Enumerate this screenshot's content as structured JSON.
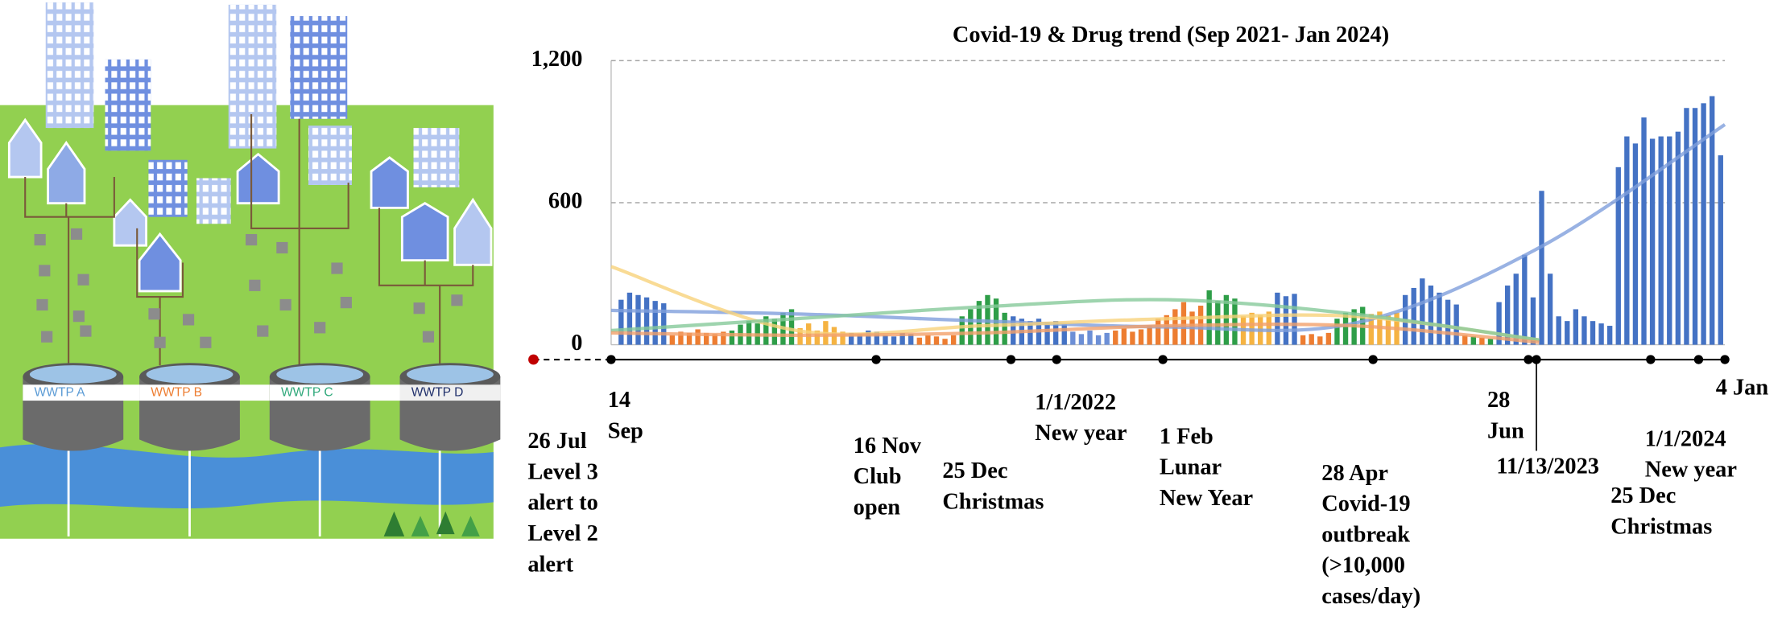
{
  "illustration": {
    "plants": [
      {
        "label": "WWTP A",
        "color": "#5b9bd5"
      },
      {
        "label": "WWTP B",
        "color": "#ed7d31"
      },
      {
        "label": "WWTP C",
        "color": "#2ea87a"
      },
      {
        "label": "WWTP D",
        "color": "#1f2f6b"
      }
    ]
  },
  "chart_data": {
    "type": "bar",
    "title": "Covid-19 & Drug trend (Sep 2021- Jan 2024)",
    "ylim": [
      0,
      1200
    ],
    "yticks": [
      0,
      600,
      {
        "value": 1200,
        "label": "1,200"
      }
    ],
    "grid": true,
    "values": [
      190,
      220,
      210,
      200,
      185,
      175,
      40,
      55,
      50,
      65,
      50,
      45,
      55,
      60,
      85,
      100,
      90,
      120,
      110,
      135,
      150,
      70,
      90,
      60,
      100,
      75,
      55,
      50,
      45,
      60,
      55,
      40,
      35,
      50,
      45,
      30,
      40,
      35,
      25,
      40,
      120,
      150,
      185,
      210,
      195,
      135,
      120,
      110,
      100,
      110,
      95,
      100,
      85,
      55,
      45,
      60,
      40,
      50,
      60,
      70,
      55,
      65,
      80,
      110,
      125,
      150,
      180,
      140,
      165,
      230,
      185,
      210,
      195,
      120,
      135,
      125,
      140,
      220,
      205,
      215,
      40,
      45,
      35,
      50,
      110,
      135,
      150,
      160,
      130,
      140,
      125,
      135,
      210,
      240,
      280,
      250,
      220,
      190,
      170,
      40,
      35,
      30,
      25,
      180,
      250,
      300,
      380,
      200,
      650,
      300,
      120,
      100,
      150,
      120,
      100,
      90,
      80,
      750,
      880,
      850,
      960,
      870,
      880,
      880,
      900,
      1000,
      1000,
      1020,
      1050,
      800
    ],
    "colors": [
      "#4472c4",
      "#4472c4",
      "#4472c4",
      "#4472c4",
      "#4472c4",
      "#4472c4",
      "#ed7d31",
      "#ed7d31",
      "#ed7d31",
      "#ed7d31",
      "#ed7d31",
      "#ed7d31",
      "#ed7d31",
      "#2e9e48",
      "#2e9e48",
      "#2e9e48",
      "#2e9e48",
      "#2e9e48",
      "#2e9e48",
      "#2e9e48",
      "#2e9e48",
      "#f5b342",
      "#f5b342",
      "#f5b342",
      "#f5b342",
      "#f5b342",
      "#f5b342",
      "#4472c4",
      "#4472c4",
      "#4472c4",
      "#4472c4",
      "#4472c4",
      "#4472c4",
      "#4472c4",
      "#4472c4",
      "#ed7d31",
      "#ed7d31",
      "#ed7d31",
      "#ed7d31",
      "#ed7d31",
      "#2e9e48",
      "#2e9e48",
      "#2e9e48",
      "#2e9e48",
      "#2e9e48",
      "#2e9e48",
      "#4472c4",
      "#4472c4",
      "#4472c4",
      "#4472c4",
      "#4472c4",
      "#4472c4",
      "#4472c4",
      "#6c8fd6",
      "#6c8fd6",
      "#6c8fd6",
      "#6c8fd6",
      "#6c8fd6",
      "#ed7d31",
      "#ed7d31",
      "#ed7d31",
      "#ed7d31",
      "#ed7d31",
      "#ed7d31",
      "#ed7d31",
      "#ed7d31",
      "#ed7d31",
      "#ed7d31",
      "#ed7d31",
      "#2e9e48",
      "#2e9e48",
      "#2e9e48",
      "#2e9e48",
      "#f5b342",
      "#f5b342",
      "#f5b342",
      "#f5b342",
      "#4472c4",
      "#4472c4",
      "#4472c4",
      "#ed7d31",
      "#ed7d31",
      "#ed7d31",
      "#ed7d31",
      "#2e9e48",
      "#2e9e48",
      "#2e9e48",
      "#2e9e48",
      "#f5b342",
      "#f5b342",
      "#f5b342",
      "#f5b342",
      "#4472c4",
      "#4472c4",
      "#4472c4",
      "#4472c4",
      "#4472c4",
      "#4472c4",
      "#4472c4",
      "#ed7d31",
      "#2e9e48",
      "#ed7d31",
      "#2e9e48",
      "#4472c4",
      "#4472c4",
      "#4472c4",
      "#4472c4",
      "#4472c4",
      "#4472c4",
      "#4472c4",
      "#4472c4",
      "#4472c4",
      "#4472c4",
      "#4472c4",
      "#4472c4",
      "#4472c4",
      "#4472c4",
      "#4472c4",
      "#4472c4",
      "#4472c4",
      "#4472c4",
      "#4472c4",
      "#4472c4",
      "#4472c4",
      "#4472c4",
      "#4472c4",
      "#4472c4",
      "#4472c4",
      "#4472c4",
      "#4472c4"
    ],
    "trends": [
      {
        "color": "#7f9fdc",
        "values": [
          145,
          130,
          100,
          75,
          90,
          410,
          930
        ]
      },
      {
        "color": "#f8d27a",
        "values": [
          330,
          60,
          80,
          110,
          120,
          20,
          null
        ]
      },
      {
        "color": "#86c99a",
        "values": [
          60,
          110,
          160,
          190,
          130,
          20,
          null
        ]
      },
      {
        "color": "#f2a06a",
        "values": [
          50,
          40,
          50,
          80,
          80,
          10,
          null
        ]
      }
    ],
    "events": [
      {
        "lines": [
          "26 Jul",
          "Level 3",
          "alert to",
          "Level 2",
          "alert"
        ]
      },
      {
        "lines": [
          "14",
          "Sep"
        ]
      },
      {
        "lines": [
          "16 Nov",
          "Club",
          "open"
        ]
      },
      {
        "lines": [
          "25 Dec",
          "Christmas"
        ]
      },
      {
        "lines": [
          "1/1/2022",
          "New year"
        ]
      },
      {
        "lines": [
          "1 Feb",
          "Lunar",
          "New Year"
        ]
      },
      {
        "lines": [
          "28 Apr",
          "Covid-19",
          "outbreak",
          "(>10,000",
          "cases/day)"
        ]
      },
      {
        "lines": [
          "28",
          "Jun"
        ]
      },
      {
        "lines": [
          "11/13/2023"
        ]
      },
      {
        "lines": [
          "25 Dec",
          "Christmas"
        ]
      },
      {
        "lines": [
          "1/1/2024",
          "New year"
        ]
      },
      {
        "lines": [
          "4 Jan"
        ]
      }
    ]
  }
}
